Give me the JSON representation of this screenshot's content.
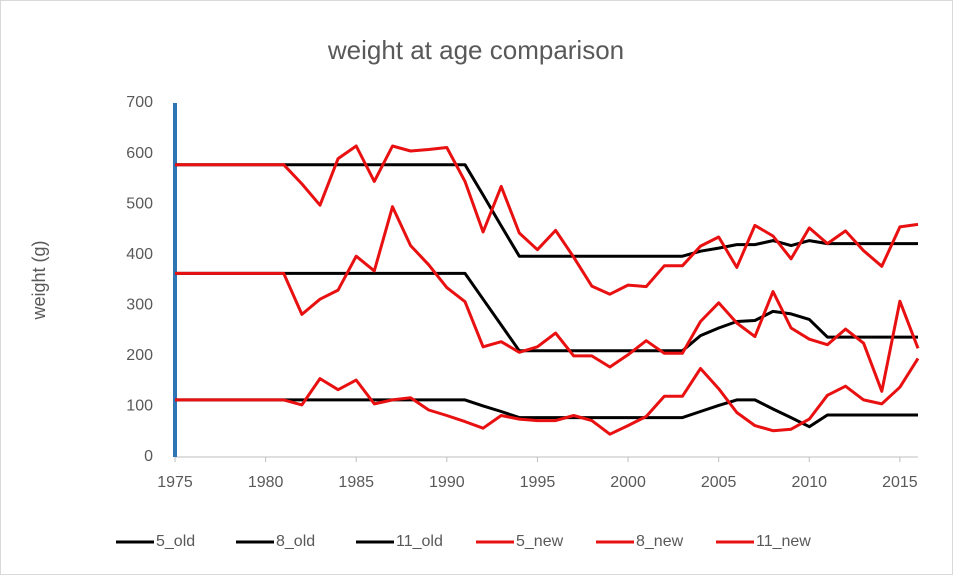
{
  "chart_data": {
    "type": "line",
    "title": "weight at age comparison",
    "y_label": "weight (g)",
    "x": [
      1975,
      1976,
      1977,
      1978,
      1979,
      1980,
      1981,
      1982,
      1983,
      1984,
      1985,
      1986,
      1987,
      1988,
      1989,
      1990,
      1991,
      1992,
      1993,
      1994,
      1995,
      1996,
      1997,
      1998,
      1999,
      2000,
      2001,
      2002,
      2003,
      2004,
      2005,
      2006,
      2007,
      2008,
      2009,
      2010,
      2011,
      2012,
      2013,
      2014,
      2015,
      2016
    ],
    "xlim": [
      1975,
      2016
    ],
    "xticks": [
      1975,
      1980,
      1985,
      1990,
      1995,
      2000,
      2005,
      2010,
      2015
    ],
    "ylim": [
      0,
      700
    ],
    "yticks": [
      0,
      100,
      200,
      300,
      400,
      500,
      600,
      700
    ],
    "grid": false,
    "legend": "bottom",
    "series": [
      {
        "name": "5_old",
        "color": "#000000",
        "values": [
          113,
          113,
          113,
          113,
          113,
          113,
          113,
          113,
          113,
          113,
          113,
          113,
          113,
          113,
          113,
          113,
          113,
          101,
          90,
          78,
          78,
          78,
          78,
          78,
          78,
          78,
          78,
          78,
          78,
          90,
          102,
          113,
          113,
          95,
          78,
          60,
          83,
          83,
          83,
          83,
          83,
          83
        ]
      },
      {
        "name": "8_old",
        "color": "#000000",
        "values": [
          363,
          363,
          363,
          363,
          363,
          363,
          363,
          363,
          363,
          363,
          363,
          363,
          363,
          363,
          363,
          363,
          363,
          312,
          261,
          210,
          210,
          210,
          210,
          210,
          210,
          210,
          210,
          210,
          210,
          240,
          255,
          268,
          270,
          288,
          283,
          272,
          237,
          237,
          237,
          237,
          237,
          237
        ]
      },
      {
        "name": "11_old",
        "color": "#000000",
        "values": [
          578,
          578,
          578,
          578,
          578,
          578,
          578,
          578,
          578,
          578,
          578,
          578,
          578,
          578,
          578,
          578,
          578,
          518,
          457,
          397,
          397,
          397,
          397,
          397,
          397,
          397,
          397,
          397,
          397,
          407,
          413,
          420,
          420,
          428,
          418,
          428,
          422,
          422,
          422,
          422,
          422,
          422
        ]
      },
      {
        "name": "5_new",
        "color": "#e81010",
        "values": [
          113,
          113,
          113,
          113,
          113,
          113,
          113,
          103,
          155,
          133,
          152,
          105,
          113,
          117,
          93,
          82,
          70,
          57,
          82,
          75,
          72,
          72,
          82,
          72,
          45,
          62,
          80,
          120,
          120,
          175,
          135,
          88,
          62,
          52,
          55,
          75,
          122,
          140,
          113,
          105,
          138,
          195
        ]
      },
      {
        "name": "8_new",
        "color": "#e81010",
        "values": [
          363,
          363,
          363,
          363,
          363,
          363,
          363,
          282,
          312,
          330,
          397,
          368,
          495,
          418,
          380,
          335,
          307,
          218,
          228,
          207,
          218,
          245,
          200,
          200,
          178,
          202,
          230,
          205,
          205,
          268,
          305,
          265,
          238,
          327,
          255,
          233,
          222,
          253,
          225,
          130,
          308,
          215
        ]
      },
      {
        "name": "11_new",
        "color": "#e81010",
        "values": [
          578,
          578,
          578,
          578,
          578,
          578,
          578,
          540,
          498,
          590,
          615,
          545,
          615,
          605,
          608,
          612,
          545,
          445,
          535,
          443,
          410,
          448,
          395,
          338,
          322,
          340,
          337,
          378,
          378,
          417,
          435,
          375,
          458,
          437,
          392,
          453,
          422,
          447,
          408,
          377,
          455,
          460
        ]
      }
    ]
  }
}
